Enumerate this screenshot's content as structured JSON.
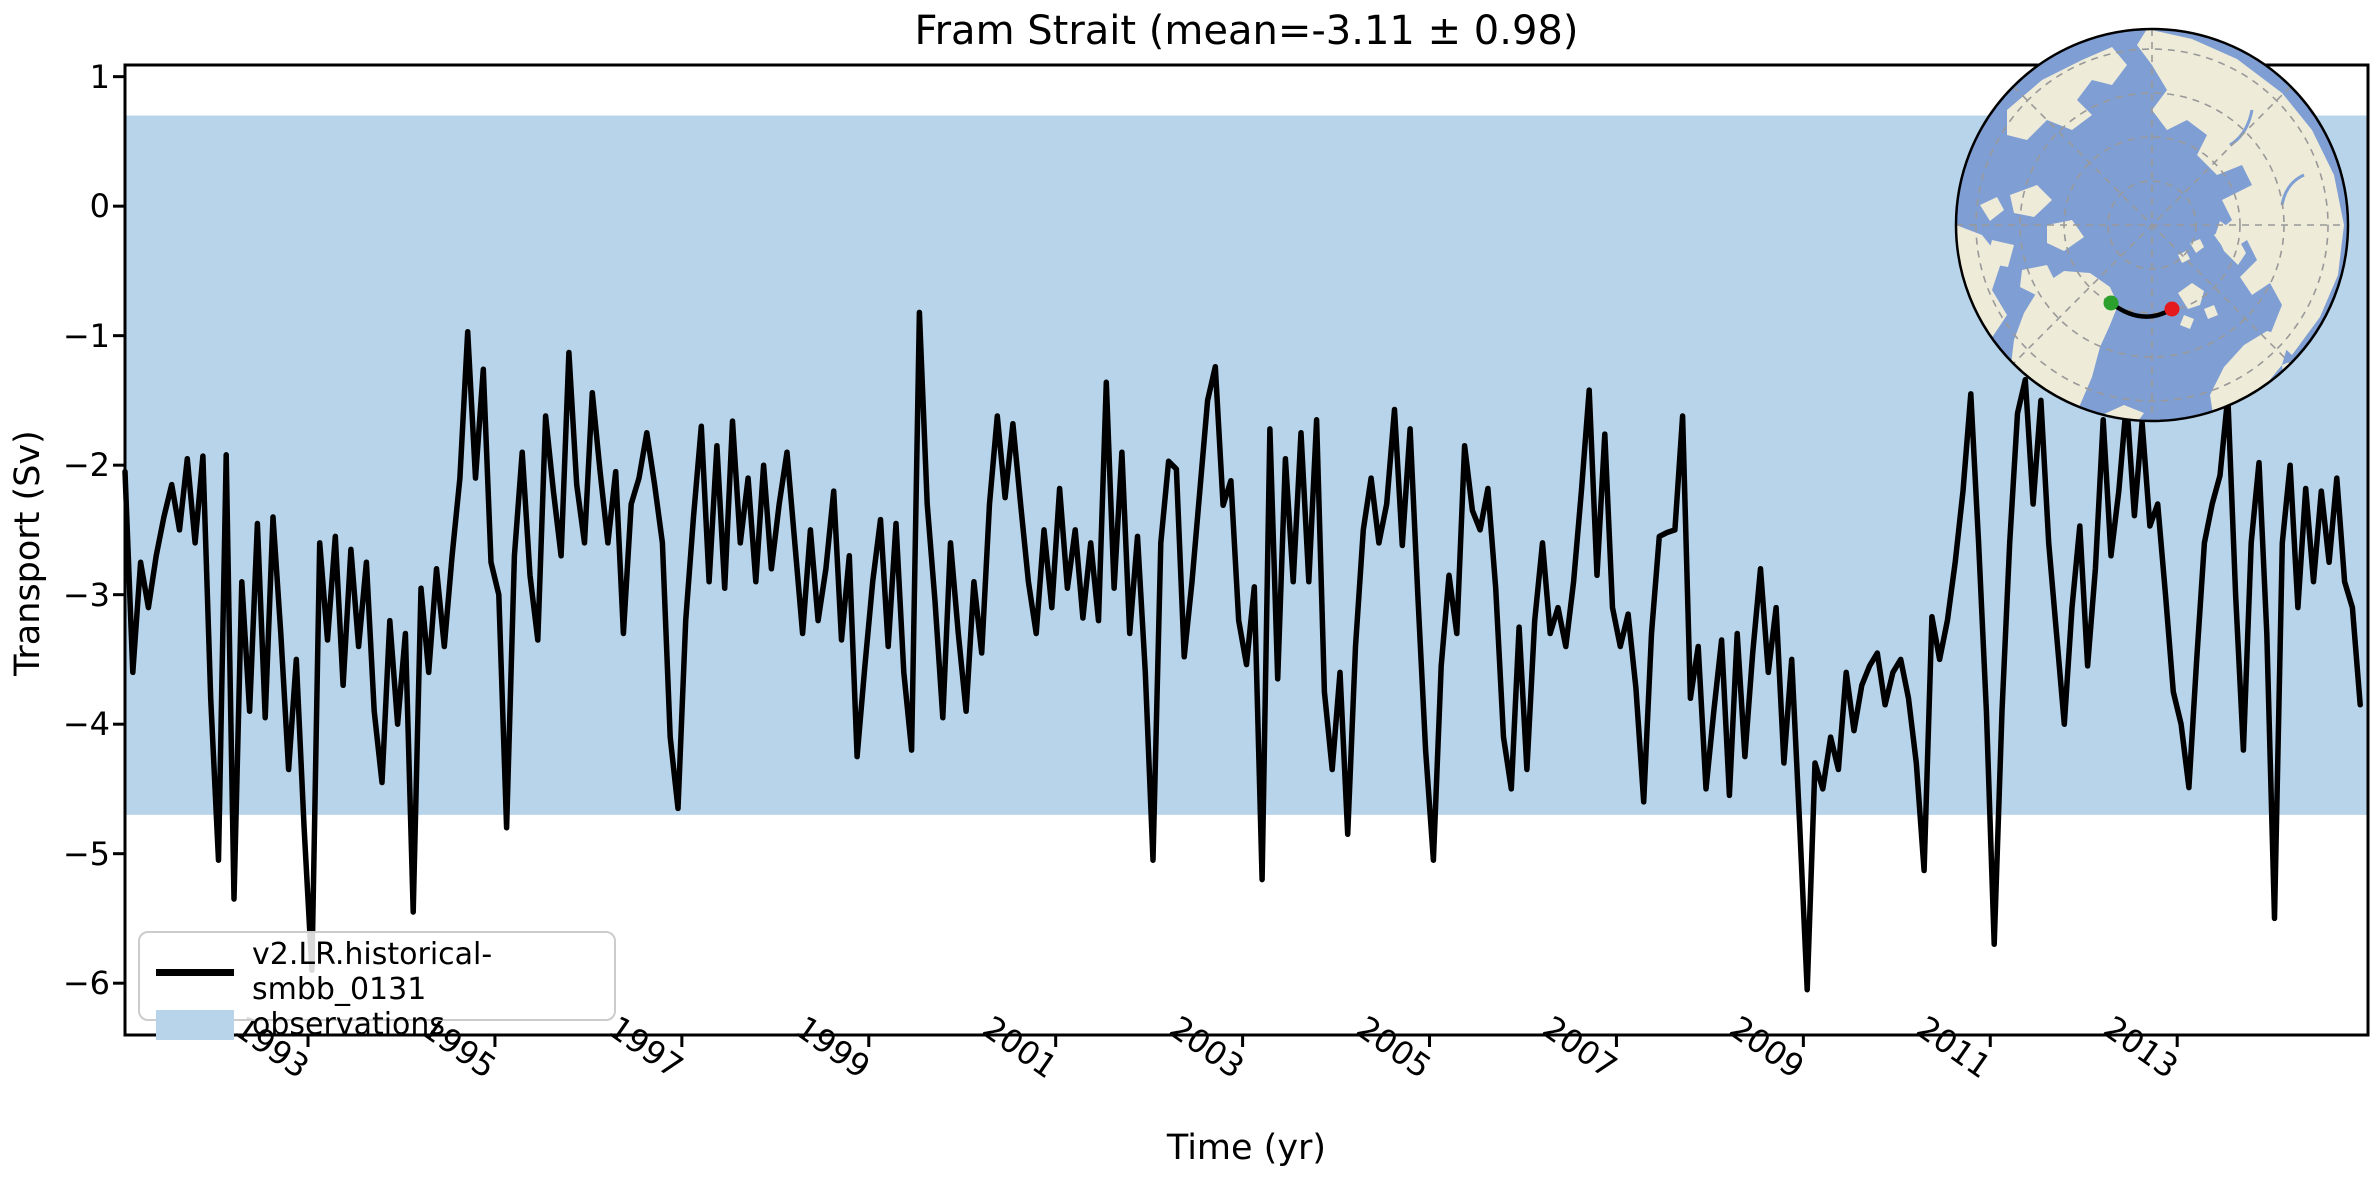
{
  "title": "Fram Strait (mean=-3.11 ± 0.98)",
  "axes": {
    "xlabel": "Time (yr)",
    "ylabel": "Transport (Sv)"
  },
  "legend": {
    "items": [
      {
        "label": "v2.LR.historical-smbb_0131",
        "sample": "line"
      },
      {
        "label": "observations",
        "sample": "patch"
      }
    ]
  },
  "colors": {
    "band": "#b7d4ea",
    "line": "#000000",
    "map_ocean": "#7f9ed3",
    "map_land": "#eeebd9",
    "graticule": "#999999",
    "transect_start_dot": "#2ca02c",
    "transect_end_dot": "#e41a1c",
    "legend_border": "#cccccc"
  },
  "chart_data": {
    "type": "line",
    "title": "Fram Strait (mean=-3.11 ± 0.98)",
    "xlabel": "Time (yr)",
    "ylabel": "Transport (Sv)",
    "xlim": [
      1991.0417,
      2015.0417
    ],
    "ylim": [
      -6.4,
      1.09
    ],
    "xticks": [
      1993,
      1995,
      1997,
      1999,
      2001,
      2003,
      2005,
      2007,
      2009,
      2011,
      2013
    ],
    "xtick_labels": [
      "1993",
      "1995",
      "1997",
      "1999",
      "2001",
      "2003",
      "2005",
      "2007",
      "2009",
      "2011",
      "2013"
    ],
    "yticks": [
      1,
      0,
      -1,
      -2,
      -3,
      -4,
      -5,
      -6
    ],
    "ytick_labels": [
      "1",
      "0",
      "−1",
      "−2",
      "−3",
      "−4",
      "−5",
      "−6"
    ],
    "grid": false,
    "legend_position": "lower left",
    "observations_band": {
      "label": "observations",
      "min": -4.7,
      "max": 0.7
    },
    "series": [
      {
        "name": "v2.LR.historical-smbb_0131",
        "x_start": 1991.0417,
        "x_step_years": 0.0833333,
        "frequency": "monthly",
        "mean": -3.11,
        "std": 0.98,
        "values": [
          -2.05,
          -3.6,
          -2.75,
          -3.1,
          -2.7,
          -2.4,
          -2.15,
          -2.5,
          -1.95,
          -2.6,
          -1.93,
          -3.8,
          -5.05,
          -1.92,
          -5.35,
          -2.9,
          -3.9,
          -2.45,
          -3.95,
          -2.4,
          -3.3,
          -4.35,
          -3.5,
          -4.8,
          -5.9,
          -2.6,
          -3.35,
          -2.55,
          -3.7,
          -2.65,
          -3.4,
          -2.75,
          -3.9,
          -4.45,
          -3.2,
          -4.0,
          -3.3,
          -5.45,
          -2.95,
          -3.6,
          -2.8,
          -3.4,
          -2.7,
          -2.1,
          -0.97,
          -2.1,
          -1.26,
          -2.75,
          -3.0,
          -4.8,
          -2.7,
          -1.9,
          -2.85,
          -3.35,
          -1.62,
          -2.2,
          -2.7,
          -1.13,
          -2.15,
          -2.6,
          -1.44,
          -2.05,
          -2.6,
          -2.05,
          -3.3,
          -2.3,
          -2.1,
          -1.75,
          -2.15,
          -2.6,
          -4.1,
          -4.65,
          -3.2,
          -2.4,
          -1.7,
          -2.9,
          -1.85,
          -2.95,
          -1.66,
          -2.6,
          -2.1,
          -2.9,
          -2.0,
          -2.8,
          -2.3,
          -1.9,
          -2.6,
          -3.3,
          -2.5,
          -3.2,
          -2.8,
          -2.2,
          -3.35,
          -2.7,
          -4.25,
          -3.55,
          -2.9,
          -2.42,
          -3.4,
          -2.45,
          -3.6,
          -4.2,
          -0.82,
          -2.3,
          -3.05,
          -3.95,
          -2.6,
          -3.3,
          -3.9,
          -2.9,
          -3.45,
          -2.3,
          -1.62,
          -2.25,
          -1.68,
          -2.3,
          -2.9,
          -3.3,
          -2.5,
          -3.1,
          -2.18,
          -2.95,
          -2.5,
          -3.18,
          -2.6,
          -3.2,
          -1.36,
          -2.95,
          -1.9,
          -3.3,
          -2.55,
          -3.6,
          -5.05,
          -2.6,
          -1.97,
          -2.03,
          -3.48,
          -2.9,
          -2.2,
          -1.5,
          -1.24,
          -2.31,
          -2.12,
          -3.2,
          -3.54,
          -2.94,
          -5.2,
          -1.72,
          -3.65,
          -1.95,
          -2.9,
          -1.75,
          -2.9,
          -1.65,
          -3.75,
          -4.35,
          -3.6,
          -4.85,
          -3.4,
          -2.5,
          -2.1,
          -2.6,
          -2.3,
          -1.57,
          -2.62,
          -1.72,
          -3.0,
          -4.2,
          -5.05,
          -3.55,
          -2.85,
          -3.3,
          -1.85,
          -2.35,
          -2.5,
          -2.18,
          -2.95,
          -4.1,
          -4.5,
          -3.25,
          -4.35,
          -3.2,
          -2.6,
          -3.3,
          -3.1,
          -3.4,
          -2.9,
          -2.2,
          -1.42,
          -2.85,
          -1.76,
          -3.1,
          -3.4,
          -3.15,
          -3.72,
          -4.6,
          -3.3,
          -2.55,
          -2.52,
          -2.5,
          -1.62,
          -3.8,
          -3.4,
          -4.5,
          -3.9,
          -3.35,
          -4.55,
          -3.3,
          -4.25,
          -3.45,
          -2.8,
          -3.6,
          -3.1,
          -4.3,
          -3.5,
          -4.75,
          -6.05,
          -4.3,
          -4.5,
          -4.1,
          -4.35,
          -3.6,
          -4.05,
          -3.7,
          -3.55,
          -3.45,
          -3.85,
          -3.6,
          -3.5,
          -3.8,
          -4.3,
          -5.13,
          -3.17,
          -3.5,
          -3.2,
          -2.75,
          -2.2,
          -1.45,
          -2.6,
          -3.9,
          -5.7,
          -3.9,
          -2.6,
          -1.6,
          -1.34,
          -2.3,
          -1.5,
          -2.6,
          -3.3,
          -4.0,
          -3.1,
          -2.47,
          -3.55,
          -2.8,
          -1.65,
          -2.7,
          -2.2,
          -1.5,
          -2.39,
          -1.67,
          -2.47,
          -2.3,
          -3.0,
          -3.75,
          -4.0,
          -4.49,
          -3.5,
          -2.6,
          -2.3,
          -2.08,
          -1.47,
          -3.0,
          -4.2,
          -2.6,
          -1.98,
          -3.3,
          -5.5,
          -2.6,
          -2.0,
          -3.1,
          -2.18,
          -2.9,
          -2.2,
          -2.75,
          -2.1,
          -2.9,
          -3.1,
          -3.85
        ]
      }
    ],
    "inset_map": {
      "description": "North polar stereographic locator map with Fram Strait transect between Greenland and Svalbard",
      "transect_start_dot_color": "#2ca02c",
      "transect_end_dot_color": "#e41a1c"
    }
  }
}
